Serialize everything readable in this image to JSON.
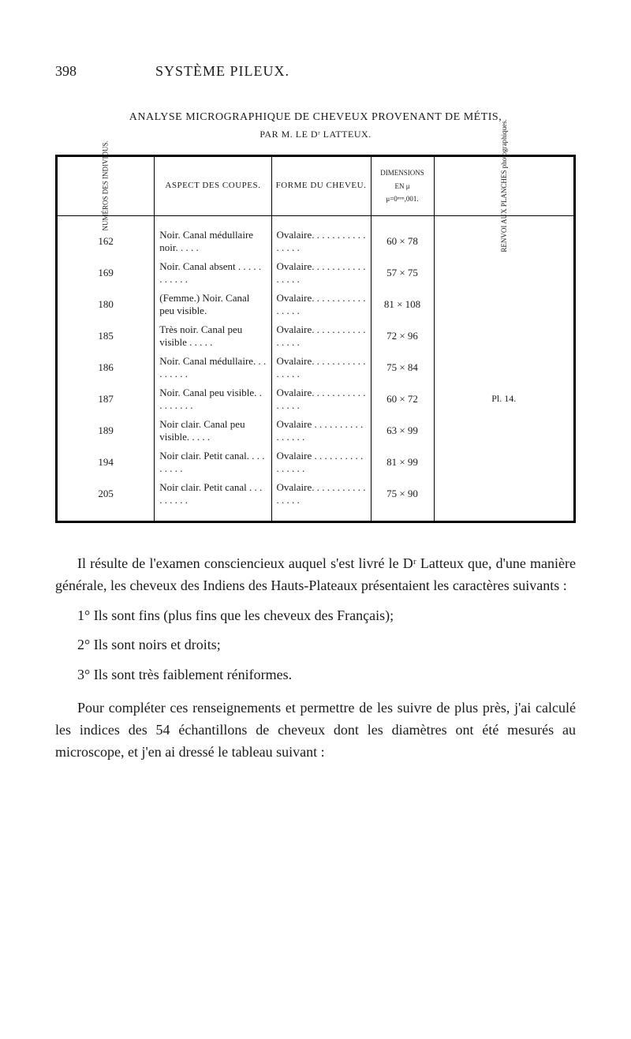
{
  "header": {
    "page_number": "398",
    "title": "SYSTÈME PILEUX."
  },
  "table": {
    "heading": "ANALYSE MICROGRAPHIQUE DE CHEVEUX PROVENANT DE MÉTIS,",
    "subheading": "PAR M. LE Dʳ LATTEUX.",
    "columns": {
      "num": "NUMÉROS DES INDIVIDUS.",
      "aspect": "ASPECT DES COUPES.",
      "forme": "FORME DU CHEVEU.",
      "dim_label": "DIMENSIONS",
      "dim_sub1": "EN μ",
      "dim_sub2": "μ=0ᵐᵐ,001.",
      "renvoi": "RENVOI AUX PLANCHES photographiques."
    },
    "rows": [
      {
        "num": "162",
        "aspect": "Noir. Canal médullaire noir. . . . .",
        "forme": "Ovalaire. . . . . . . . . . . . . . . .",
        "dim": "60 × 78",
        "renvoi": ""
      },
      {
        "num": "169",
        "aspect": "Noir. Canal absent . . . . . . . . . . .",
        "forme": "Ovalaire. . . . . . . . . . . . . . . .",
        "dim": "57 × 75",
        "renvoi": ""
      },
      {
        "num": "180",
        "aspect": "(Femme.) Noir. Canal peu visible.",
        "forme": "Ovalaire. . . . . . . . . . . . . . . .",
        "dim": "81 × 108",
        "renvoi": ""
      },
      {
        "num": "185",
        "aspect": "Très noir. Canal peu visible . . . . .",
        "forme": "Ovalaire. . . . . . . . . . . . . . . .",
        "dim": "72 × 96",
        "renvoi": ""
      },
      {
        "num": "186",
        "aspect": "Noir. Canal médullaire. . . . . . . . .",
        "forme": "Ovalaire. . . . . . . . . . . . . . . .",
        "dim": "75 × 84",
        "renvoi": ""
      },
      {
        "num": "187",
        "aspect": "Noir. Canal peu visible. . . . . . . . .",
        "forme": "Ovalaire. . . . . . . . . . . . . . . .",
        "dim": "60 × 72",
        "renvoi": "Pl. 14."
      },
      {
        "num": "189",
        "aspect": "Noir clair. Canal peu visible. . . . .",
        "forme": "Ovalaire . . . . . . . . . . . . . . . .",
        "dim": "63 × 99",
        "renvoi": ""
      },
      {
        "num": "194",
        "aspect": "Noir clair. Petit canal. . . . . . . . .",
        "forme": "Ovalaire . . . . . . . . . . . . . . . .",
        "dim": "81 × 99",
        "renvoi": ""
      },
      {
        "num": "205",
        "aspect": "Noir clair. Petit canal . . . . . . . . .",
        "forme": "Ovalaire. . . . . . . . . . . . . . . .",
        "dim": "75 × 90",
        "renvoi": ""
      }
    ]
  },
  "prose": {
    "p1": "Il résulte de l'examen consciencieux auquel s'est livré le Dʳ Latteux que, d'une manière générale, les cheveux des Indiens des Hauts-Plateaux présentaient les caractères suivants :",
    "l1": "1° Ils sont fins (plus fins que les cheveux des Français);",
    "l2": "2° Ils sont noirs et droits;",
    "l3": "3° Ils sont très faiblement réniformes.",
    "p2": "Pour compléter ces renseignements et permettre de les suivre de plus près, j'ai calculé les indices des 54 échantillons de cheveux dont les diamètres ont été mesurés au microscope, et j'en ai dressé le tableau suivant :"
  }
}
